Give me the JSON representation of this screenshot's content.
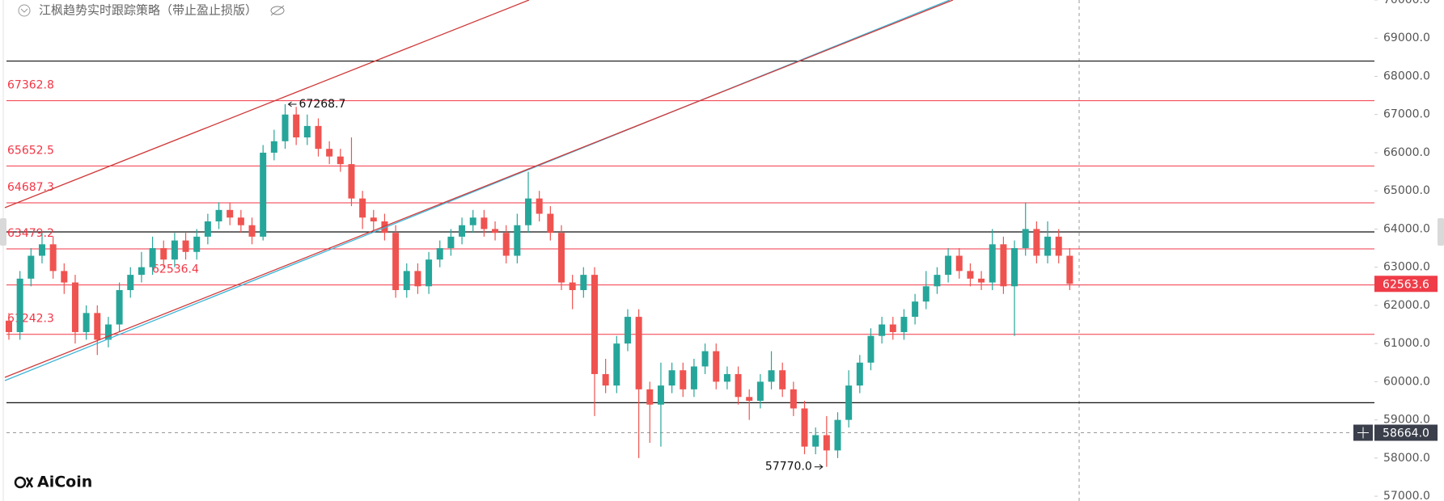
{
  "chart_data": {
    "type": "candlestick",
    "title": "江枫趋势实时跟踪策略（带止盈止损版）",
    "brand": "AiCoin",
    "up_color": "#26a69a",
    "down_color": "#ef5350",
    "ylim": [
      56875,
      70000
    ],
    "yticks": [
      {
        "value": 57000,
        "label": "57000.0"
      },
      {
        "value": 58000,
        "label": "58000.0"
      },
      {
        "value": 59000,
        "label": "59000.0"
      },
      {
        "value": 60000,
        "label": "60000.0"
      },
      {
        "value": 61000,
        "label": "61000.0"
      },
      {
        "value": 62000,
        "label": "62000.0"
      },
      {
        "value": 63000,
        "label": "63000.0"
      },
      {
        "value": 64000,
        "label": "64000.0"
      },
      {
        "value": 65000,
        "label": "65000.0"
      },
      {
        "value": 66000,
        "label": "66000.0"
      },
      {
        "value": 67000,
        "label": "67000.0"
      },
      {
        "value": 68000,
        "label": "68000.0"
      },
      {
        "value": 69000,
        "label": "69000.0"
      },
      {
        "value": 70000,
        "label": "70000.0"
      }
    ],
    "open": [
      61600,
      61300,
      62700,
      63300,
      63600,
      62900,
      62600,
      61300,
      61800,
      61100,
      61500,
      62400,
      62800,
      63000,
      63500,
      63200,
      63700,
      63400,
      63800,
      64200,
      64500,
      64300,
      64100,
      63800,
      66000,
      66300,
      67000,
      66400,
      66700,
      66100,
      65900,
      65700,
      64800,
      64300,
      64200,
      63900,
      62400,
      62900,
      62500,
      63200,
      63500,
      63800,
      64100,
      64300,
      64000,
      63900,
      63300,
      64100,
      64800,
      64400,
      63900,
      62600,
      62400,
      62800,
      60200,
      59900,
      61000,
      61700,
      59800,
      59400,
      59900,
      60300,
      59800,
      60400,
      60800,
      60000,
      60200,
      59600,
      59500,
      60000,
      60300,
      59800,
      59300,
      58300,
      58600,
      58200,
      59000,
      59900,
      60500,
      61200,
      61500,
      61300,
      61700,
      62100,
      62500,
      62800,
      63300,
      62900,
      62700,
      62600,
      63600,
      62500,
      63500,
      64000,
      63300,
      63800,
      63300
    ],
    "high": [
      61800,
      62900,
      63500,
      63900,
      63800,
      63100,
      62800,
      62000,
      62000,
      61700,
      62600,
      63000,
      63400,
      63800,
      63700,
      63900,
      63900,
      64000,
      64400,
      64700,
      64700,
      64500,
      64300,
      66200,
      66600,
      67268.7,
      67200,
      67000,
      66900,
      66300,
      66100,
      66400,
      65000,
      64500,
      64400,
      64100,
      63100,
      63100,
      63400,
      63700,
      64000,
      64300,
      64500,
      64500,
      64200,
      64100,
      64400,
      65500,
      65000,
      64600,
      64100,
      62800,
      63000,
      63000,
      60600,
      61200,
      61900,
      61900,
      60000,
      60500,
      60500,
      60500,
      60600,
      61000,
      61000,
      60400,
      60400,
      59800,
      60200,
      60800,
      60500,
      60000,
      59500,
      58800,
      59100,
      59200,
      60300,
      60700,
      61400,
      61700,
      61700,
      61900,
      62300,
      62900,
      63000,
      63500,
      63500,
      63100,
      62900,
      64000,
      63800,
      63700,
      64700,
      64200,
      64200,
      64000,
      63500
    ],
    "low": [
      61100,
      61100,
      62500,
      63100,
      62700,
      62300,
      61000,
      61100,
      60700,
      60900,
      61300,
      62200,
      62600,
      62800,
      63000,
      63000,
      63200,
      63200,
      63600,
      64000,
      64100,
      63900,
      63600,
      63700,
      65800,
      66100,
      66200,
      66200,
      65900,
      65700,
      65500,
      64600,
      64000,
      63900,
      63700,
      62200,
      62200,
      62300,
      62300,
      63000,
      63300,
      63600,
      63900,
      63800,
      63700,
      63100,
      63100,
      63900,
      64200,
      63700,
      62400,
      61900,
      62200,
      59100,
      59700,
      59700,
      60800,
      58000,
      58400,
      58300,
      59700,
      59600,
      59600,
      60200,
      59800,
      59800,
      59400,
      59000,
      59300,
      59800,
      59600,
      59100,
      58100,
      58100,
      57770.0,
      58000,
      58800,
      59700,
      60300,
      61000,
      61100,
      61100,
      61500,
      61900,
      62300,
      62600,
      62700,
      62500,
      62400,
      62400,
      62300,
      61200,
      63300,
      63100,
      63100,
      63100,
      62400
    ],
    "close": [
      61300,
      62700,
      63300,
      63600,
      62900,
      62600,
      61300,
      61800,
      61100,
      61500,
      62400,
      62800,
      63000,
      63500,
      63200,
      63700,
      63400,
      63800,
      64200,
      64500,
      64300,
      64100,
      63800,
      66000,
      66300,
      67000,
      66400,
      66700,
      66100,
      65900,
      65700,
      64800,
      64300,
      64200,
      63900,
      62400,
      62900,
      62500,
      63200,
      63500,
      63800,
      64100,
      64300,
      64000,
      63900,
      63300,
      64100,
      64800,
      64400,
      63900,
      62600,
      62400,
      62800,
      60200,
      59900,
      61000,
      61700,
      59800,
      59400,
      59900,
      60300,
      59800,
      60400,
      60800,
      60000,
      60200,
      59600,
      59500,
      60000,
      60300,
      59800,
      59300,
      58300,
      58600,
      58200,
      59000,
      59900,
      60500,
      61200,
      61500,
      61300,
      61700,
      62100,
      62500,
      62800,
      63300,
      62900,
      62700,
      62600,
      63600,
      62500,
      63500,
      64000,
      63300,
      63800,
      63300,
      62563.6
    ],
    "levels": [
      67362.8,
      65652.5,
      64687.3,
      63479.2,
      62536.4,
      61242.3
    ],
    "level_color": "#f23645",
    "lines": [
      68400,
      63925,
      59450
    ],
    "line_color": "#111111",
    "high_mark": 67268.7,
    "low_mark": {
      "value": 57770,
      "label": "57770.0"
    },
    "last_price": 62563.6,
    "crosshair": {
      "value": 58664,
      "label": "58664.0"
    }
  }
}
